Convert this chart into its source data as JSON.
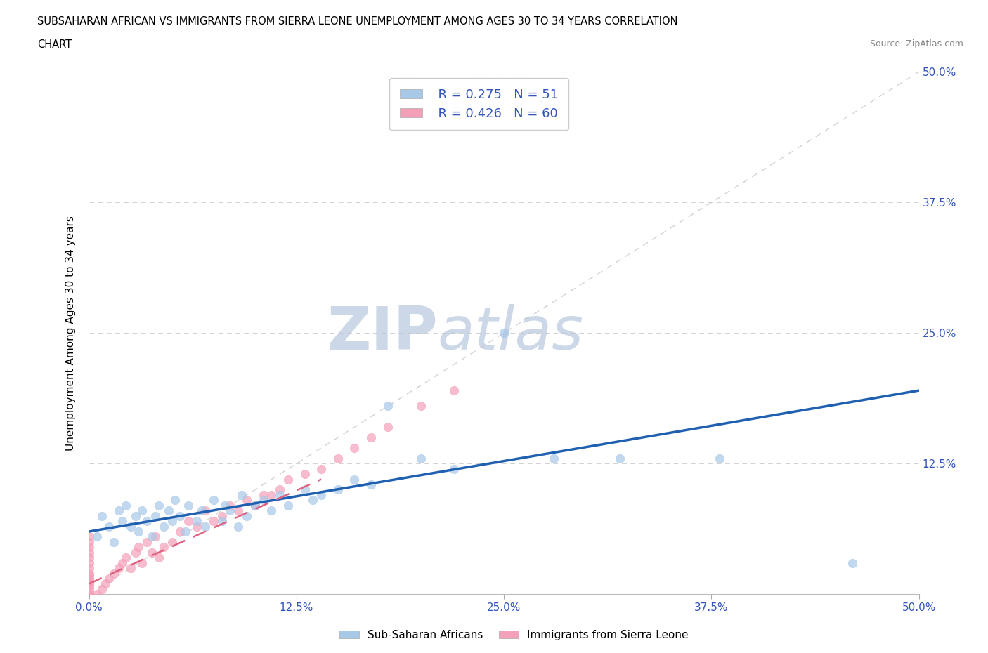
{
  "title_line1": "SUBSAHARAN AFRICAN VS IMMIGRANTS FROM SIERRA LEONE UNEMPLOYMENT AMONG AGES 30 TO 34 YEARS CORRELATION",
  "title_line2": "CHART",
  "source_text": "Source: ZipAtlas.com",
  "ylabel": "Unemployment Among Ages 30 to 34 years",
  "xlim": [
    0.0,
    0.5
  ],
  "ylim": [
    0.0,
    0.5
  ],
  "xtick_labels": [
    "0.0%",
    "12.5%",
    "25.0%",
    "37.5%",
    "50.0%"
  ],
  "xtick_vals": [
    0.0,
    0.125,
    0.25,
    0.375,
    0.5
  ],
  "ytick_labels": [
    "12.5%",
    "25.0%",
    "37.5%",
    "50.0%"
  ],
  "ytick_vals": [
    0.125,
    0.25,
    0.375,
    0.5
  ],
  "blue_color": "#a8c8e8",
  "pink_color": "#f4a0b8",
  "blue_line_color": "#2060b0",
  "pink_line_color": "#e06080",
  "diagonal_color": "#c8c8c8",
  "watermark_color": "#ccd8e8",
  "legend_R1": "R = 0.275",
  "legend_N1": "N = 51",
  "legend_R2": "R = 0.426",
  "legend_N2": "N = 60",
  "blue_scatter_x": [
    0.005,
    0.008,
    0.012,
    0.015,
    0.018,
    0.02,
    0.022,
    0.025,
    0.028,
    0.03,
    0.032,
    0.035,
    0.038,
    0.04,
    0.042,
    0.045,
    0.048,
    0.05,
    0.052,
    0.055,
    0.058,
    0.06,
    0.065,
    0.068,
    0.07,
    0.075,
    0.08,
    0.082,
    0.085,
    0.09,
    0.092,
    0.095,
    0.1,
    0.105,
    0.11,
    0.115,
    0.12,
    0.13,
    0.135,
    0.14,
    0.15,
    0.16,
    0.17,
    0.18,
    0.2,
    0.22,
    0.25,
    0.28,
    0.32,
    0.38,
    0.46
  ],
  "blue_scatter_y": [
    0.055,
    0.075,
    0.065,
    0.05,
    0.08,
    0.07,
    0.085,
    0.065,
    0.075,
    0.06,
    0.08,
    0.07,
    0.055,
    0.075,
    0.085,
    0.065,
    0.08,
    0.07,
    0.09,
    0.075,
    0.06,
    0.085,
    0.07,
    0.08,
    0.065,
    0.09,
    0.07,
    0.085,
    0.08,
    0.065,
    0.095,
    0.075,
    0.085,
    0.09,
    0.08,
    0.095,
    0.085,
    0.1,
    0.09,
    0.095,
    0.1,
    0.11,
    0.105,
    0.18,
    0.13,
    0.12,
    0.25,
    0.13,
    0.13,
    0.13,
    0.03
  ],
  "pink_scatter_x": [
    0.0,
    0.0,
    0.0,
    0.0,
    0.0,
    0.0,
    0.0,
    0.0,
    0.0,
    0.0,
    0.0,
    0.0,
    0.0,
    0.0,
    0.0,
    0.0,
    0.0,
    0.0,
    0.0,
    0.0,
    0.005,
    0.008,
    0.01,
    0.012,
    0.015,
    0.018,
    0.02,
    0.022,
    0.025,
    0.028,
    0.03,
    0.032,
    0.035,
    0.038,
    0.04,
    0.042,
    0.045,
    0.05,
    0.055,
    0.06,
    0.065,
    0.07,
    0.075,
    0.08,
    0.085,
    0.09,
    0.095,
    0.1,
    0.105,
    0.11,
    0.115,
    0.12,
    0.13,
    0.14,
    0.15,
    0.16,
    0.17,
    0.18,
    0.2,
    0.22
  ],
  "pink_scatter_y": [
    0.0,
    0.0,
    0.0,
    0.0,
    0.0,
    0.0,
    0.005,
    0.008,
    0.01,
    0.012,
    0.015,
    0.018,
    0.02,
    0.025,
    0.03,
    0.035,
    0.04,
    0.045,
    0.05,
    0.055,
    0.0,
    0.005,
    0.01,
    0.015,
    0.02,
    0.025,
    0.03,
    0.035,
    0.025,
    0.04,
    0.045,
    0.03,
    0.05,
    0.04,
    0.055,
    0.035,
    0.045,
    0.05,
    0.06,
    0.07,
    0.065,
    0.08,
    0.07,
    0.075,
    0.085,
    0.08,
    0.09,
    0.085,
    0.095,
    0.095,
    0.1,
    0.11,
    0.115,
    0.12,
    0.13,
    0.14,
    0.15,
    0.16,
    0.18,
    0.195
  ],
  "blue_trend_x": [
    0.0,
    0.5
  ],
  "blue_trend_y": [
    0.06,
    0.195
  ],
  "pink_trend_x": [
    0.0,
    0.14
  ],
  "pink_trend_y": [
    0.01,
    0.11
  ],
  "axis_color": "#3355bb",
  "tick_label_color": "#3355bb",
  "background_color": "#ffffff"
}
